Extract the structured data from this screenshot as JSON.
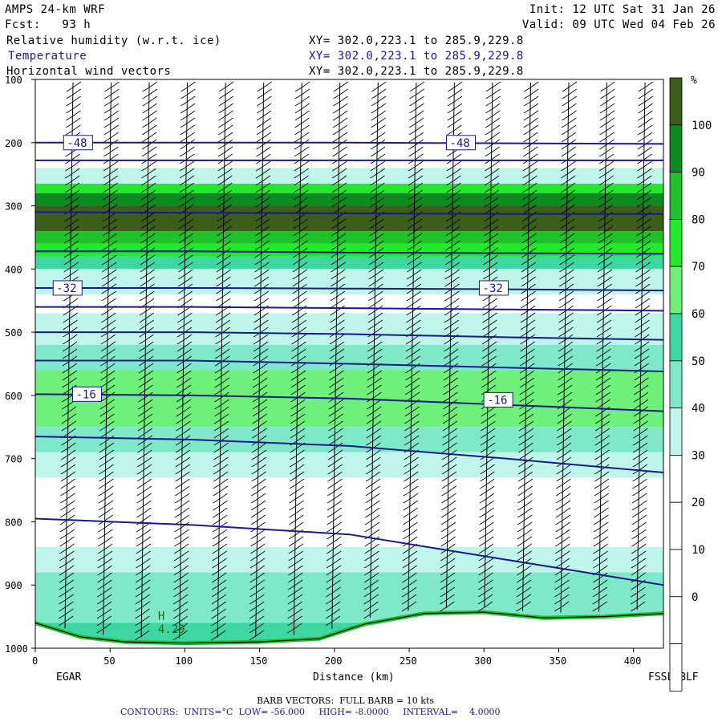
{
  "header": {
    "model": "AMPS 24-km WRF",
    "forecast": "Fcst:   93 h",
    "init": "Init: 12 UTC Sat 31 Jan 26",
    "valid": "Valid: 09 UTC Wed 04 Feb 26",
    "fields": [
      {
        "name": "Relative humidity (w.r.t. ice)",
        "xy": "XY= 302.0,223.1 to 285.9,229.8"
      },
      {
        "name": "Temperature",
        "xy": "XY= 302.0,223.1 to 285.9,229.8"
      },
      {
        "name": "Horizontal wind vectors",
        "xy": "XY= 302.0,223.1 to 285.9,229.8"
      }
    ]
  },
  "footer": {
    "left_station": "EGAR",
    "right_station": "FSSL_BLF",
    "barb_note": "BARB VECTORS:  FULL BARB = 10 kts",
    "contours_note": "CONTOURS:  UNITS=°C  LOW= -56.000     HIGH= -8.0000     INTERVAL=    4.0000"
  },
  "colors": {
    "rh_0_30": "#ffffff",
    "rh_30_40": "#bff5ea",
    "rh_40_50": "#7fe8c8",
    "rh_50_60": "#3ed7a3",
    "rh_60_70": "#6ff07a",
    "rh_70_80": "#24e82c",
    "rh_80_90": "#1fc228",
    "rh_90_100": "#0d8a20",
    "rh_100": "#3d5e1a",
    "temperature": "#1a1a8c",
    "barbs": "#000000"
  },
  "chart_data": {
    "type": "cross-section",
    "xlabel": "Distance (km)",
    "ylabel": "",
    "xlim": [
      0,
      420
    ],
    "ylim": [
      1000,
      100
    ],
    "x_ticks": [
      "0",
      "50",
      "100",
      "150",
      "200",
      "250",
      "300",
      "350",
      "400"
    ],
    "y_ticks": [
      "100",
      "200",
      "300",
      "400",
      "500",
      "600",
      "700",
      "800",
      "900",
      "1000"
    ],
    "colorbar": {
      "unit": "%",
      "ticks": [
        "100",
        "90",
        "80",
        "70",
        "60",
        "50",
        "40",
        "30",
        "20",
        "10",
        "0"
      ],
      "bins": [
        "rh_100",
        "rh_90_100",
        "rh_80_90",
        "rh_70_80",
        "rh_60_70",
        "rh_50_60",
        "rh_40_50",
        "rh_30_40",
        "rh_0_30",
        "rh_0_30",
        "rh_0_30",
        "rh_0_30",
        "rh_0_30"
      ]
    },
    "rh_layers": [
      {
        "p_top": 240,
        "p_bot": 265,
        "bin": "rh_30_40"
      },
      {
        "p_top": 265,
        "p_bot": 280,
        "bin": "rh_70_80"
      },
      {
        "p_top": 280,
        "p_bot": 300,
        "bin": "rh_90_100"
      },
      {
        "p_top": 300,
        "p_bot": 340,
        "bin": "rh_100"
      },
      {
        "p_top": 340,
        "p_bot": 360,
        "bin": "rh_80_90"
      },
      {
        "p_top": 360,
        "p_bot": 380,
        "bin": "rh_70_80"
      },
      {
        "p_top": 380,
        "p_bot": 400,
        "bin": "rh_50_60"
      },
      {
        "p_top": 400,
        "p_bot": 440,
        "bin": "rh_30_40"
      },
      {
        "p_top": 470,
        "p_bot": 520,
        "bin": "rh_30_40"
      },
      {
        "p_top": 520,
        "p_bot": 560,
        "bin": "rh_40_50"
      },
      {
        "p_top": 560,
        "p_bot": 650,
        "bin": "rh_60_70"
      },
      {
        "p_top": 650,
        "p_bot": 690,
        "bin": "rh_40_50"
      },
      {
        "p_top": 690,
        "p_bot": 730,
        "bin": "rh_30_40"
      },
      {
        "p_top": 840,
        "p_bot": 880,
        "bin": "rh_30_40"
      },
      {
        "p_top": 880,
        "p_bot": 960,
        "bin": "rh_40_50"
      },
      {
        "p_top": 960,
        "p_bot": 1000,
        "bin": "rh_50_60"
      }
    ],
    "isotherms": [
      {
        "label": "-48",
        "p": [
          200,
          200,
          200,
          201,
          202
        ],
        "label_at": [
          [
            20,
            200
          ],
          [
            276,
            200
          ]
        ]
      },
      {
        "p": [
          228,
          228,
          228,
          228,
          228
        ]
      },
      {
        "p": [
          310,
          311,
          312,
          313,
          313
        ]
      },
      {
        "p": [
          372,
          372,
          374,
          375,
          376
        ]
      },
      {
        "label": "-32",
        "p": [
          430,
          430,
          431,
          432,
          434
        ],
        "label_at": [
          [
            13,
            430
          ],
          [
            298,
            430
          ]
        ]
      },
      {
        "p": [
          460,
          460,
          462,
          464,
          466
        ]
      },
      {
        "p": [
          500,
          500,
          503,
          508,
          512
        ]
      },
      {
        "p": [
          545,
          545,
          550,
          556,
          562
        ]
      },
      {
        "label": "-16",
        "p": [
          598,
          600,
          605,
          615,
          625
        ],
        "label_at": [
          [
            26,
            598
          ],
          [
            301,
            607
          ]
        ]
      },
      {
        "p": [
          665,
          670,
          680,
          700,
          722
        ]
      },
      {
        "p": [
          795,
          805,
          820,
          860,
          900
        ]
      }
    ],
    "terrain_p": [
      [
        0,
        960
      ],
      [
        30,
        982
      ],
      [
        60,
        990
      ],
      [
        100,
        992
      ],
      [
        150,
        990
      ],
      [
        190,
        985
      ],
      [
        220,
        962
      ],
      [
        260,
        945
      ],
      [
        300,
        943
      ],
      [
        340,
        952
      ],
      [
        380,
        950
      ],
      [
        420,
        945
      ]
    ],
    "annotations": [
      {
        "text": "H",
        "x": 82,
        "p": 955
      },
      {
        "text": "4.29",
        "x": 82,
        "p": 976
      }
    ]
  }
}
